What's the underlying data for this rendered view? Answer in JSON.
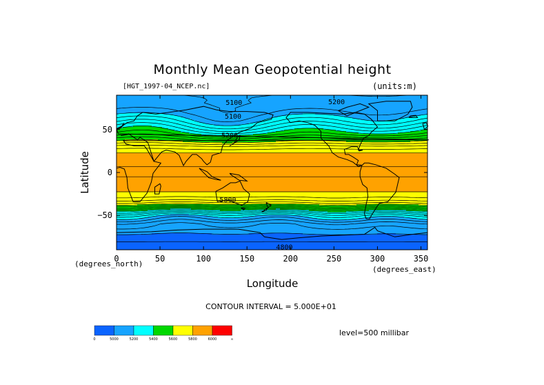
{
  "chart_data": {
    "type": "heatmap",
    "title": "Monthly Mean Geopotential height",
    "dataset": "[HGT_1997-04_NCEP.nc]",
    "units": "(units:m)",
    "xlabel": "Longitude",
    "ylabel": "Latitude",
    "x_units": "(degrees_east)",
    "y_units": "(degrees_north)",
    "xlim": [
      0,
      357.5
    ],
    "ylim": [
      -90,
      90
    ],
    "x_ticks": [
      0,
      50,
      100,
      150,
      200,
      250,
      300,
      350
    ],
    "y_ticks": [
      50,
      0,
      -50
    ],
    "contour_interval": "CONTOUR INTERVAL = 5.000E+01",
    "level": "level=500 millibar",
    "grid": false,
    "colorbar": {
      "tick_labels": [
        "0",
        "5000",
        "5200",
        "5400",
        "5600",
        "5800",
        "6000",
        "∞"
      ],
      "colors": [
        "#0a64ff",
        "#16a4ff",
        "#00ffff",
        "#00d800",
        "#ffff00",
        "#ffa200",
        "#ff0000"
      ],
      "placement": "bottom-left"
    },
    "contour_labels": [
      {
        "text": "5100",
        "lon": 135,
        "lat": 81
      },
      {
        "text": "5200",
        "lon": 253,
        "lat": 82
      },
      {
        "text": "5100",
        "lon": 134,
        "lat": 65
      },
      {
        "text": "5200",
        "lon": 130,
        "lat": 43
      },
      {
        "text": "5800",
        "lon": 128,
        "lat": -32
      },
      {
        "text": "4800",
        "lon": 193,
        "lat": -87
      }
    ],
    "zonal_profile": {
      "lat": [
        -90,
        -75,
        -60,
        -50,
        -45,
        -40,
        -35,
        -30,
        -20,
        0,
        20,
        30,
        35,
        40,
        45,
        50,
        60,
        70,
        80,
        90
      ],
      "height": [
        4900,
        4980,
        5070,
        5230,
        5370,
        5520,
        5660,
        5740,
        5820,
        5860,
        5830,
        5720,
        5620,
        5530,
        5430,
        5360,
        5240,
        5150,
        5110,
        5100
      ]
    }
  }
}
